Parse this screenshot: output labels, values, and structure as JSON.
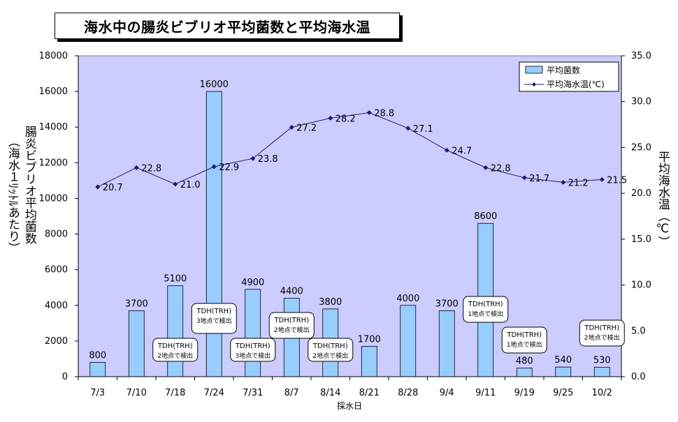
{
  "chart_data": {
    "type": "bar+line",
    "title": "海水中の腸炎ビブリオ平均菌数と平均海水温",
    "xlabel": "採水日",
    "ylabel_left_main": "腸炎ビブリオ平均菌数",
    "ylabel_left_sub": "（海水１ﾘｯﾄﾙあたり）",
    "ylabel_right": "平均海水温（℃）",
    "categories": [
      "7/3",
      "7/10",
      "7/18",
      "7/24",
      "7/31",
      "8/7",
      "8/14",
      "8/21",
      "8/28",
      "9/4",
      "9/11",
      "9/19",
      "9/25",
      "10/2"
    ],
    "ylim_left": [
      0,
      18000
    ],
    "yticks_left": [
      "0",
      "2000",
      "4000",
      "6000",
      "8000",
      "10000",
      "12000",
      "14000",
      "16000",
      "18000"
    ],
    "ylim_right": [
      0,
      35
    ],
    "yticks_right": [
      "0.0",
      "5.0",
      "10.0",
      "15.0",
      "20.0",
      "25.0",
      "30.0",
      "35.0"
    ],
    "series": [
      {
        "name": "平均菌数",
        "kind": "bar",
        "color": "#99ccff",
        "values": [
          800,
          3700,
          5100,
          16000,
          4900,
          4400,
          3800,
          1700,
          4000,
          3700,
          8600,
          480,
          540,
          530
        ],
        "labels": [
          "800",
          "3700",
          "5100",
          "16000",
          "4900",
          "4400",
          "3800",
          "1700",
          "4000",
          "3700",
          "8600",
          "480",
          "540",
          "530"
        ]
      },
      {
        "name": "平均海水温(℃)",
        "kind": "line",
        "color": "#1a1a6e",
        "values": [
          20.7,
          22.8,
          21.0,
          22.9,
          23.8,
          27.2,
          28.2,
          28.8,
          27.1,
          24.7,
          22.8,
          21.7,
          21.2,
          21.5
        ],
        "labels": [
          "20.7",
          "22.8",
          "21.0",
          "22.9",
          "23.8",
          "27.2",
          "28.2",
          "28.8",
          "27.1",
          "24.7",
          "22.8",
          "21.7",
          "21.2",
          "21.5"
        ]
      }
    ],
    "annotations": [
      {
        "category": "7/18",
        "line1": "TDH(TRH)",
        "line2": "2地点で検出"
      },
      {
        "category": "7/24",
        "line1": "TDH(TRH)",
        "line2": "3地点で検出"
      },
      {
        "category": "7/31",
        "line1": "TDH(TRH)",
        "line2": "3地点で検出"
      },
      {
        "category": "8/7",
        "line1": "TDH(TRH)",
        "line2": "2地点で検出"
      },
      {
        "category": "8/14",
        "line1": "TDH(TRH)",
        "line2": "2地点で検出"
      },
      {
        "category": "9/11",
        "line1": "TDH(TRH)",
        "line2": "1地点で検出"
      },
      {
        "category": "9/19",
        "line1": "TDH(TRH)",
        "line2": "1地点で検出"
      },
      {
        "category": "10/2",
        "line1": "TDH(TRH)",
        "line2": "2地点で検出"
      }
    ],
    "legend_position": "top-right",
    "plot_bg": "#ccccff",
    "grid": false
  }
}
